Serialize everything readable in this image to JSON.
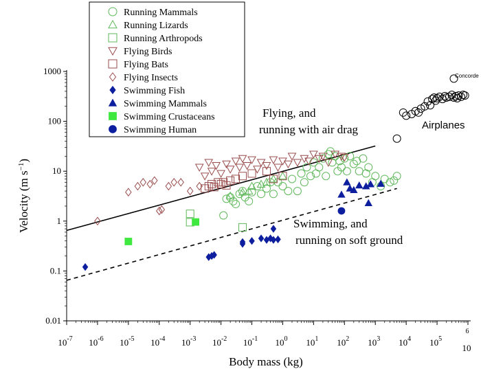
{
  "chart_data": {
    "type": "scatter",
    "title": "",
    "xlabel": "Body mass (kg)",
    "ylabel_base": "Velocity (m s",
    "ylabel_sup": "−1",
    "ylabel_end": ")",
    "xscale": "log",
    "yscale": "log",
    "xlim": [
      1e-07,
      1000000.0
    ],
    "ylim": [
      0.01,
      1000
    ],
    "grid": false,
    "legend_position": "top-left",
    "x_ticks": [
      {
        "base": "10",
        "exp": "-7"
      },
      {
        "base": "10",
        "exp": "-6"
      },
      {
        "base": "10",
        "exp": "-5"
      },
      {
        "base": "10",
        "exp": "-4"
      },
      {
        "base": "10",
        "exp": "-3"
      },
      {
        "base": "10",
        "exp": "-2"
      },
      {
        "base": "10",
        "exp": "-1"
      },
      {
        "base": "10",
        "exp": "0"
      },
      {
        "base": "10",
        "exp": "1"
      },
      {
        "base": "10",
        "exp": "2"
      },
      {
        "base": "10",
        "exp": "3"
      },
      {
        "base": "10",
        "exp": "4"
      },
      {
        "base": "10",
        "exp": "5"
      },
      {
        "base": "10",
        "exp": "6"
      }
    ],
    "y_ticks": [
      "0.01",
      "0.1",
      "1",
      "10",
      "100",
      "1000"
    ],
    "series": [
      {
        "name": "Running Mammals",
        "marker": "circle-open",
        "color": "#5fb85a",
        "points": [
          [
            0.012,
            1.3
          ],
          [
            0.015,
            2.8
          ],
          [
            0.02,
            3.0
          ],
          [
            0.025,
            2.5
          ],
          [
            0.03,
            2.2
          ],
          [
            0.04,
            3.5
          ],
          [
            0.05,
            4
          ],
          [
            0.06,
            3
          ],
          [
            0.08,
            2.5
          ],
          [
            0.1,
            3.8
          ],
          [
            0.15,
            5
          ],
          [
            0.2,
            3.5
          ],
          [
            0.3,
            4.5
          ],
          [
            0.4,
            6
          ],
          [
            0.5,
            3.5
          ],
          [
            0.7,
            6
          ],
          [
            1,
            5
          ],
          [
            1.5,
            4
          ],
          [
            2,
            7
          ],
          [
            3,
            4
          ],
          [
            4,
            9
          ],
          [
            5,
            6
          ],
          [
            6,
            12
          ],
          [
            8,
            8
          ],
          [
            10,
            15
          ],
          [
            12,
            9
          ],
          [
            15,
            12
          ],
          [
            20,
            18
          ],
          [
            25,
            8
          ],
          [
            30,
            22
          ],
          [
            35,
            25
          ],
          [
            40,
            15
          ],
          [
            50,
            20
          ],
          [
            60,
            10
          ],
          [
            70,
            16
          ],
          [
            80,
            12
          ],
          [
            100,
            18
          ],
          [
            120,
            10
          ],
          [
            150,
            20
          ],
          [
            200,
            14
          ],
          [
            250,
            16
          ],
          [
            300,
            10
          ],
          [
            400,
            18
          ],
          [
            500,
            9
          ],
          [
            600,
            12
          ],
          [
            800,
            6
          ],
          [
            1000,
            8
          ],
          [
            1500,
            5
          ],
          [
            2000,
            7
          ],
          [
            3000,
            6
          ],
          [
            4000,
            6.5
          ],
          [
            5000,
            8
          ]
        ]
      },
      {
        "name": "Running Lizards",
        "marker": "triangle-up-open",
        "color": "#5fb85a",
        "points": [
          [
            0.02,
            3.2
          ],
          [
            0.05,
            3.8
          ],
          [
            0.08,
            4
          ],
          [
            0.1,
            5
          ],
          [
            0.2,
            5.5
          ],
          [
            0.3,
            6
          ],
          [
            0.5,
            7
          ],
          [
            1,
            8
          ]
        ]
      },
      {
        "name": "Running Arthropods",
        "marker": "square-open",
        "color": "#5fb85a",
        "points": [
          [
            0.001,
            1.4
          ],
          [
            0.001,
            0.95
          ],
          [
            0.05,
            0.75
          ]
        ]
      },
      {
        "name": "Flying Birds",
        "marker": "triangle-down-open",
        "color": "#9a4d4d",
        "points": [
          [
            0.002,
            12
          ],
          [
            0.003,
            8
          ],
          [
            0.004,
            15
          ],
          [
            0.005,
            10
          ],
          [
            0.007,
            13
          ],
          [
            0.01,
            9
          ],
          [
            0.015,
            14
          ],
          [
            0.02,
            11
          ],
          [
            0.03,
            16
          ],
          [
            0.04,
            12
          ],
          [
            0.05,
            18
          ],
          [
            0.07,
            13
          ],
          [
            0.1,
            17
          ],
          [
            0.15,
            11
          ],
          [
            0.2,
            15
          ],
          [
            0.3,
            13
          ],
          [
            0.5,
            17
          ],
          [
            0.7,
            12
          ],
          [
            1,
            16
          ],
          [
            1.5,
            14
          ],
          [
            2,
            20
          ],
          [
            3,
            15
          ],
          [
            5,
            18
          ],
          [
            7,
            16
          ],
          [
            10,
            22
          ],
          [
            15,
            18
          ],
          [
            20,
            20
          ],
          [
            30,
            15
          ],
          [
            50,
            22
          ],
          [
            80,
            20
          ],
          [
            100,
            19
          ]
        ]
      },
      {
        "name": "Flying Bats",
        "marker": "square-open",
        "color": "#9a4d4d",
        "points": [
          [
            0.003,
            4.5
          ],
          [
            0.004,
            5
          ],
          [
            0.005,
            5.5
          ],
          [
            0.006,
            4.8
          ],
          [
            0.008,
            6
          ],
          [
            0.01,
            5.5
          ],
          [
            0.012,
            6
          ],
          [
            0.015,
            5.2
          ],
          [
            0.02,
            6.5
          ],
          [
            0.03,
            7
          ],
          [
            0.05,
            8
          ],
          [
            0.1,
            9
          ],
          [
            0.3,
            10
          ],
          [
            0.5,
            7
          ],
          [
            1,
            8
          ]
        ]
      },
      {
        "name": "Flying Insects",
        "marker": "diamond-open",
        "color": "#9a4d4d",
        "points": [
          [
            1e-06,
            1.0
          ],
          [
            1e-05,
            3.8
          ],
          [
            2e-05,
            5
          ],
          [
            3e-05,
            6
          ],
          [
            5e-05,
            5.5
          ],
          [
            7e-05,
            6.5
          ],
          [
            0.0001,
            1.6
          ],
          [
            0.00012,
            1.7
          ],
          [
            0.0002,
            5
          ],
          [
            0.0003,
            6
          ],
          [
            0.0005,
            6
          ],
          [
            0.001,
            4
          ],
          [
            0.002,
            5
          ]
        ]
      },
      {
        "name": "Swimming Fish",
        "marker": "diamond-filled",
        "color": "#0d1f9e",
        "points": [
          [
            4e-07,
            0.12
          ],
          [
            0.004,
            0.19
          ],
          [
            0.005,
            0.2
          ],
          [
            0.006,
            0.21
          ],
          [
            0.05,
            0.35
          ],
          [
            0.05,
            0.38
          ],
          [
            0.1,
            0.4
          ],
          [
            0.2,
            0.45
          ],
          [
            0.3,
            0.42
          ],
          [
            0.4,
            0.45
          ],
          [
            0.5,
            0.42
          ],
          [
            0.5,
            0.7
          ],
          [
            0.7,
            0.43
          ]
        ]
      },
      {
        "name": "Swimming Mammals",
        "marker": "triangle-up-filled",
        "color": "#0d1f9e",
        "points": [
          [
            80,
            3.4
          ],
          [
            120,
            6
          ],
          [
            150,
            4.5
          ],
          [
            200,
            4.2
          ],
          [
            300,
            5.2
          ],
          [
            500,
            5
          ],
          [
            600,
            2.3
          ],
          [
            700,
            5.5
          ],
          [
            1500,
            5.6
          ]
        ]
      },
      {
        "name": "Swimming Crustaceans",
        "marker": "square-filled",
        "color": "#3ee83e",
        "points": [
          [
            1e-05,
            0.39
          ],
          [
            0.0015,
            0.96
          ]
        ]
      },
      {
        "name": "Swimming Human",
        "marker": "circle-filled",
        "color": "#0d1f9e",
        "points": [
          [
            80,
            1.6
          ]
        ]
      },
      {
        "name": "Airplanes",
        "marker": "circle-open",
        "color": "#000000",
        "points": [
          [
            5000,
            45
          ],
          [
            8000,
            150
          ],
          [
            10000,
            130
          ],
          [
            15000,
            140
          ],
          [
            20000,
            160
          ],
          [
            25000,
            150
          ],
          [
            30000,
            180
          ],
          [
            40000,
            200
          ],
          [
            50000,
            250
          ],
          [
            60000,
            210
          ],
          [
            70000,
            280
          ],
          [
            80000,
            300
          ],
          [
            90000,
            260
          ],
          [
            100000,
            290
          ],
          [
            120000,
            310
          ],
          [
            150000,
            280
          ],
          [
            180000,
            320
          ],
          [
            200000,
            300
          ],
          [
            250000,
            310
          ],
          [
            300000,
            340
          ],
          [
            350000,
            300
          ],
          [
            400000,
            320
          ],
          [
            450000,
            290
          ],
          [
            500000,
            330
          ],
          [
            600000,
            310
          ],
          [
            700000,
            340
          ],
          [
            800000,
            330
          ]
        ]
      },
      {
        "name": "Concorde",
        "marker": "circle-open",
        "color": "#000000",
        "points": [
          [
            350000,
            720
          ]
        ]
      }
    ],
    "lines": [
      {
        "style": "solid",
        "x": [
          1e-07,
          1000
        ],
        "y": [
          0.65,
          32
        ]
      },
      {
        "style": "dashed",
        "x": [
          1e-07,
          5000
        ],
        "y": [
          0.065,
          4.5
        ]
      }
    ],
    "annotations": {
      "flying": [
        "Flying, and",
        "running with air drag"
      ],
      "swimming": [
        "Swimming, and",
        "running on soft ground"
      ],
      "airplanes": "Airplanes",
      "concorde": "Concorde"
    }
  }
}
